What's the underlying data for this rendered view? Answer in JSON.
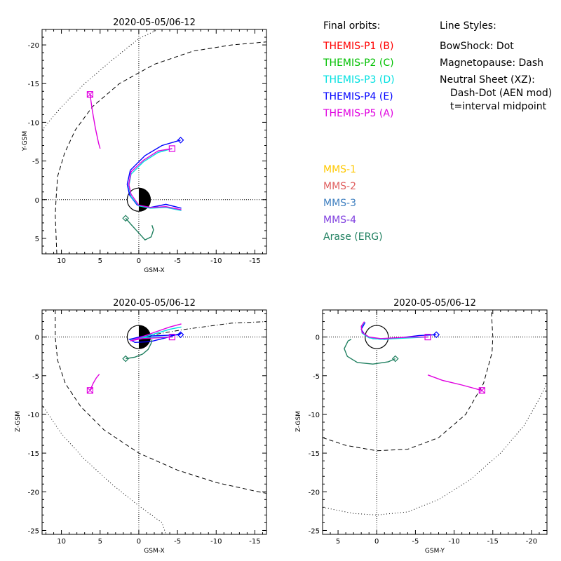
{
  "colors": {
    "P1": "#ff0000",
    "P2": "#00c000",
    "P3": "#00e0e0",
    "P4": "#0000ff",
    "P5": "#e000e0",
    "MMS1": "#ffc800",
    "MMS2": "#e06060",
    "MMS3": "#4080c0",
    "MMS4": "#8040e0",
    "ERG": "#208060"
  },
  "legend": {
    "orbits_header": "Final orbits:",
    "orbits": [
      {
        "label": "THEMIS-P1 (B)",
        "color_key": "P1"
      },
      {
        "label": "THEMIS-P2 (C)",
        "color_key": "P2"
      },
      {
        "label": "THEMIS-P3 (D)",
        "color_key": "P3"
      },
      {
        "label": "THEMIS-P4 (E)",
        "color_key": "P4"
      },
      {
        "label": "THEMIS-P5 (A)",
        "color_key": "P5"
      }
    ],
    "styles_header": "Line Styles:",
    "styles": [
      "BowShock: Dot",
      "Magnetopause: Dash",
      "Neutral Sheet (XZ):",
      "Dash-Dot (AEN mod)",
      "t=interval midpoint"
    ],
    "missions": [
      {
        "label": "MMS-1",
        "color_key": "MMS1"
      },
      {
        "label": "MMS-2",
        "color_key": "MMS2"
      },
      {
        "label": "MMS-3",
        "color_key": "MMS3"
      },
      {
        "label": "MMS-4",
        "color_key": "MMS4"
      },
      {
        "label": "Arase (ERG)",
        "color_key": "ERG"
      }
    ]
  },
  "chart_data": [
    {
      "type": "line",
      "title": "2020-05-05/06-12",
      "xlabel": "GSM-X",
      "ylabel": "Y-GSM",
      "xlim": [
        12.5,
        -16.5
      ],
      "ylim": [
        7,
        -22
      ],
      "xticks": [
        10,
        5,
        0,
        -5,
        -10,
        -15
      ],
      "yticks": [
        5,
        0,
        -5,
        -10,
        -15,
        -20
      ],
      "series": [
        {
          "key": "P5",
          "points": [
            [
              6.3,
              -13.6
            ],
            [
              6.0,
              -11.5
            ],
            [
              5.6,
              -9.2
            ],
            [
              5.2,
              -7.3
            ],
            [
              5.0,
              -6.6
            ]
          ]
        },
        {
          "key": "P4",
          "points": [
            [
              -5.4,
              -7.7
            ],
            [
              -3.0,
              -7.0
            ],
            [
              -0.8,
              -5.7
            ],
            [
              1.1,
              -3.8
            ],
            [
              1.5,
              -2.0
            ],
            [
              1.2,
              -0.6
            ],
            [
              0.2,
              0.7
            ],
            [
              -1.5,
              1.0
            ],
            [
              -3.5,
              0.6
            ],
            [
              -5.5,
              1.1
            ]
          ]
        },
        {
          "key": "P3",
          "points": [
            [
              -4.3,
              -6.6
            ],
            [
              -2.5,
              -6.1
            ],
            [
              -0.6,
              -4.9
            ],
            [
              1.0,
              -3.3
            ],
            [
              1.3,
              -1.7
            ],
            [
              1.0,
              -0.4
            ],
            [
              0.0,
              0.8
            ],
            [
              -1.5,
              1.1
            ],
            [
              -3.5,
              1.0
            ],
            [
              -5.5,
              1.4
            ]
          ]
        },
        {
          "key": "P5",
          "points": [
            [
              -4.3,
              -6.6
            ],
            [
              -2.5,
              -6.3
            ],
            [
              -0.6,
              -5.1
            ],
            [
              1.0,
              -3.6
            ],
            [
              1.3,
              -2.0
            ],
            [
              1.0,
              -0.7
            ],
            [
              0.0,
              0.7
            ],
            [
              -1.5,
              1.0
            ],
            [
              -3.5,
              0.9
            ],
            [
              -5.5,
              1.3
            ]
          ]
        },
        {
          "key": "ERG",
          "points": [
            [
              1.7,
              2.4
            ],
            [
              1.0,
              3.2
            ],
            [
              0.0,
              4.3
            ],
            [
              -0.8,
              5.2
            ],
            [
              -1.6,
              4.8
            ],
            [
              -1.9,
              3.9
            ],
            [
              -1.7,
              3.3
            ]
          ]
        }
      ],
      "markers": [
        {
          "key": "P5",
          "shape": "square-x",
          "x": 6.3,
          "y": -13.6
        },
        {
          "key": "P5",
          "shape": "square",
          "x": -4.3,
          "y": -6.6
        },
        {
          "key": "P4",
          "shape": "diamond",
          "x": -5.4,
          "y": -7.7
        },
        {
          "key": "ERG",
          "shape": "diamond",
          "x": 1.7,
          "y": 2.4
        }
      ],
      "boundaries": [
        {
          "style": "dash",
          "points": [
            [
              10.6,
              7.0
            ],
            [
              10.8,
              2.0
            ],
            [
              10.7,
              0.0
            ],
            [
              10.5,
              -3.0
            ],
            [
              9.6,
              -6.0
            ],
            [
              8.2,
              -9.0
            ],
            [
              6.0,
              -12.0
            ],
            [
              2.5,
              -15.0
            ],
            [
              -2.0,
              -17.5
            ],
            [
              -7.0,
              -19.2
            ],
            [
              -12.0,
              -20.0
            ],
            [
              -16.5,
              -20.4
            ]
          ]
        },
        {
          "style": "dot",
          "points": [
            [
              12.5,
              -9.0
            ],
            [
              10.0,
              -12.0
            ],
            [
              7.0,
              -15.0
            ],
            [
              3.5,
              -18.0
            ],
            [
              0.0,
              -20.8
            ],
            [
              -2.5,
              -22.0
            ]
          ]
        }
      ],
      "earth": true
    },
    {
      "type": "line",
      "title": "2020-05-05/06-12",
      "xlabel": "GSM-X",
      "ylabel": "Z-GSM",
      "xlim": [
        12.5,
        -16.5
      ],
      "ylim": [
        -25.5,
        3.5
      ],
      "xticks": [
        10,
        5,
        0,
        -5,
        -10,
        -15
      ],
      "yticks": [
        0,
        -5,
        -10,
        -15,
        -20,
        -25
      ],
      "series": [
        {
          "key": "P5",
          "points": [
            [
              6.3,
              -6.9
            ],
            [
              5.9,
              -6.0
            ],
            [
              5.5,
              -5.3
            ],
            [
              5.1,
              -4.8
            ]
          ]
        },
        {
          "key": "P4",
          "points": [
            [
              -5.4,
              0.3
            ],
            [
              -3.0,
              0.2
            ],
            [
              -0.5,
              0.1
            ],
            [
              1.2,
              -0.3
            ],
            [
              0.5,
              -0.7
            ],
            [
              -1.5,
              -0.6
            ],
            [
              -3.5,
              -0.1
            ],
            [
              -5.5,
              0.5
            ]
          ]
        },
        {
          "key": "P3",
          "points": [
            [
              -4.3,
              0.0
            ],
            [
              -2.5,
              0.0
            ],
            [
              -0.5,
              -0.1
            ],
            [
              1.1,
              -0.4
            ],
            [
              0.2,
              -0.3
            ],
            [
              -2.0,
              0.4
            ],
            [
              -4.0,
              1.0
            ],
            [
              -5.5,
              1.3
            ]
          ]
        },
        {
          "key": "P5",
          "points": [
            [
              -4.3,
              0.0
            ],
            [
              -2.5,
              -0.1
            ],
            [
              -0.5,
              -0.2
            ],
            [
              1.1,
              -0.5
            ],
            [
              0.2,
              -0.2
            ],
            [
              -2.0,
              0.6
            ],
            [
              -4.0,
              1.3
            ],
            [
              -5.5,
              1.7
            ]
          ]
        },
        {
          "key": "ERG",
          "points": [
            [
              1.7,
              -2.8
            ],
            [
              0.5,
              -2.6
            ],
            [
              -0.5,
              -2.2
            ],
            [
              -1.2,
              -1.6
            ],
            [
              -1.6,
              -0.8
            ],
            [
              -1.7,
              -0.3
            ]
          ]
        }
      ],
      "markers": [
        {
          "key": "P5",
          "shape": "square-x",
          "x": 6.3,
          "y": -6.9
        },
        {
          "key": "P5",
          "shape": "square",
          "x": -4.3,
          "y": 0.0
        },
        {
          "key": "P4",
          "shape": "diamond",
          "x": -5.4,
          "y": 0.3
        },
        {
          "key": "ERG",
          "shape": "diamond",
          "x": 1.7,
          "y": -2.8
        }
      ],
      "boundaries": [
        {
          "style": "dash",
          "points": [
            [
              10.8,
              3.5
            ],
            [
              10.8,
              0.0
            ],
            [
              10.5,
              -3.0
            ],
            [
              9.5,
              -6.0
            ],
            [
              7.5,
              -9.0
            ],
            [
              4.5,
              -12.0
            ],
            [
              0.0,
              -15.0
            ],
            [
              -5.0,
              -17.2
            ],
            [
              -10.0,
              -18.8
            ],
            [
              -15.0,
              -19.9
            ],
            [
              -16.5,
              -20.2
            ]
          ]
        },
        {
          "style": "dot",
          "points": [
            [
              12.5,
              -8.8
            ],
            [
              10.0,
              -12.5
            ],
            [
              7.0,
              -15.8
            ],
            [
              3.5,
              -19.0
            ],
            [
              0.0,
              -21.8
            ],
            [
              -3.0,
              -24.0
            ],
            [
              -3.5,
              -25.5
            ]
          ]
        },
        {
          "style": "dashdot",
          "points": [
            [
              0.0,
              -0.1
            ],
            [
              -3.0,
              0.5
            ],
            [
              -6.0,
              1.0
            ],
            [
              -9.0,
              1.4
            ],
            [
              -12.0,
              1.8
            ],
            [
              -16.5,
              2.0
            ]
          ]
        }
      ],
      "earth": true
    },
    {
      "type": "line",
      "title": "2020-05-05/06-12",
      "xlabel": "GSM-Y",
      "ylabel": "Z-GSM",
      "xlim": [
        7,
        -22
      ],
      "ylim": [
        -25.5,
        3.5
      ],
      "xticks": [
        5,
        0,
        -5,
        -10,
        -15,
        -20
      ],
      "yticks": [
        0,
        -5,
        -10,
        -15,
        -20,
        -25
      ],
      "series": [
        {
          "key": "P5",
          "points": [
            [
              -13.6,
              -6.9
            ],
            [
              -11.0,
              -6.2
            ],
            [
              -8.5,
              -5.6
            ],
            [
              -6.6,
              -4.9
            ]
          ]
        },
        {
          "key": "P4",
          "points": [
            [
              -7.7,
              0.3
            ],
            [
              -5.5,
              0.2
            ],
            [
              -3.0,
              -0.1
            ],
            [
              -1.0,
              -0.3
            ],
            [
              0.5,
              -0.2
            ],
            [
              1.5,
              0.2
            ],
            [
              2.0,
              1.0
            ],
            [
              1.5,
              1.9
            ]
          ]
        },
        {
          "key": "P3",
          "points": [
            [
              -6.6,
              0.0
            ],
            [
              -4.5,
              -0.1
            ],
            [
              -2.5,
              -0.2
            ],
            [
              -0.5,
              -0.3
            ],
            [
              1.0,
              -0.1
            ],
            [
              1.9,
              0.5
            ],
            [
              2.0,
              1.3
            ],
            [
              1.6,
              1.9
            ]
          ]
        },
        {
          "key": "P5",
          "points": [
            [
              -6.6,
              0.0
            ],
            [
              -4.5,
              0.0
            ],
            [
              -2.5,
              -0.1
            ],
            [
              -0.5,
              -0.2
            ],
            [
              1.0,
              0.0
            ],
            [
              1.9,
              0.6
            ],
            [
              2.0,
              1.4
            ],
            [
              1.6,
              2.0
            ]
          ]
        },
        {
          "key": "ERG",
          "points": [
            [
              -2.4,
              -2.8
            ],
            [
              -1.5,
              -3.2
            ],
            [
              0.5,
              -3.5
            ],
            [
              2.5,
              -3.3
            ],
            [
              3.8,
              -2.5
            ],
            [
              4.2,
              -1.5
            ],
            [
              3.7,
              -0.5
            ],
            [
              3.3,
              -0.3
            ]
          ]
        }
      ],
      "markers": [
        {
          "key": "P5",
          "shape": "square-x",
          "x": -13.6,
          "y": -6.9
        },
        {
          "key": "P5",
          "shape": "square",
          "x": -6.6,
          "y": 0.0
        },
        {
          "key": "P4",
          "shape": "diamond",
          "x": -7.7,
          "y": 0.3
        },
        {
          "key": "ERG",
          "shape": "diamond",
          "x": -2.4,
          "y": -2.8
        }
      ],
      "boundaries": [
        {
          "style": "dash",
          "points": [
            [
              7.0,
              -13.0
            ],
            [
              4.0,
              -14.0
            ],
            [
              0.0,
              -14.7
            ],
            [
              -4.0,
              -14.5
            ],
            [
              -8.0,
              -13.0
            ],
            [
              -11.5,
              -10.0
            ],
            [
              -13.8,
              -6.0
            ],
            [
              -14.9,
              -2.0
            ],
            [
              -15.0,
              0.0
            ],
            [
              -14.8,
              3.5
            ]
          ]
        },
        {
          "style": "dot",
          "points": [
            [
              7.0,
              -22.0
            ],
            [
              3.0,
              -22.8
            ],
            [
              0.0,
              -23.0
            ],
            [
              -4.0,
              -22.6
            ],
            [
              -8.0,
              -21.0
            ],
            [
              -12.0,
              -18.5
            ],
            [
              -16.0,
              -15.0
            ],
            [
              -19.0,
              -11.5
            ],
            [
              -21.0,
              -8.0
            ],
            [
              -22.0,
              -6.0
            ]
          ]
        }
      ],
      "earth": true
    }
  ]
}
